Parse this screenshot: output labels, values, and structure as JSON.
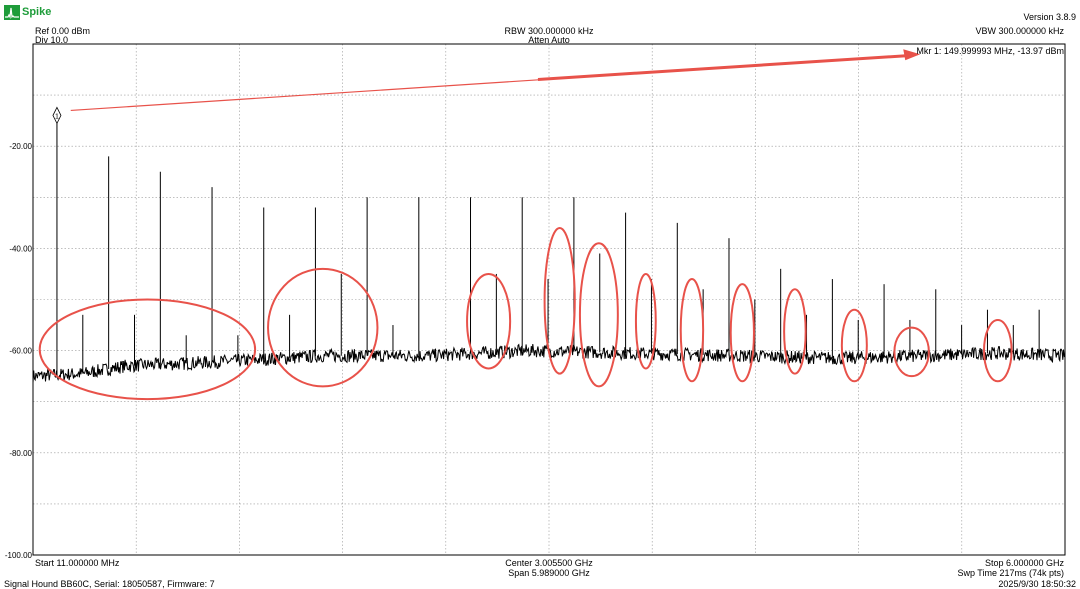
{
  "app": {
    "logo_text": "Spike",
    "version": "Version 3.8.9",
    "brand_color": "#1e9c3a"
  },
  "header": {
    "ref": "Ref 0.00 dBm",
    "div": "Div 10.0",
    "rbw": "RBW 300.000000 kHz",
    "atten": "Atten Auto",
    "vbw": "VBW 300.000000 kHz"
  },
  "marker": {
    "readout": "Mkr 1: 149.999993 MHz, -13.97 dBm",
    "label": "1",
    "freq_mhz": 149.999993,
    "level_dbm": -13.97
  },
  "footer": {
    "start": "Start 11.000000 MHz",
    "center": "Center 3.005500 GHz",
    "span": "Span 5.989000 GHz",
    "stop": "Stop 6.000000 GHz",
    "sweep": "Swp Time 217ms (74k pts)",
    "device": "Signal Hound BB60C, Serial: 18050587, Firmware: 7",
    "timestamp": "2025/9/30 18:50:32"
  },
  "chart_data": {
    "type": "line",
    "x_unit": "MHz",
    "y_unit": "dBm",
    "xlim": [
      11,
      6000
    ],
    "ylim": [
      -100,
      0
    ],
    "y_tick_labels": [
      "-20.00",
      "-40.00",
      "-60.00",
      "-80.00",
      "-100.00"
    ],
    "y_tick_values": [
      -20,
      -40,
      -60,
      -80,
      -100
    ],
    "grid": true,
    "trace_color": "#000000",
    "annotation_color": "#e8524a",
    "noise_floor": [
      [
        11,
        -65
      ],
      [
        300,
        -64.5
      ],
      [
        550,
        -63
      ],
      [
        900,
        -62.5
      ],
      [
        1200,
        -62
      ],
      [
        1700,
        -61
      ],
      [
        2300,
        -61
      ],
      [
        2900,
        -60
      ],
      [
        3500,
        -60.5
      ],
      [
        4100,
        -61
      ],
      [
        4700,
        -61.5
      ],
      [
        5200,
        -61
      ],
      [
        5600,
        -60.5
      ],
      [
        6000,
        -61
      ]
    ],
    "spurs": [
      {
        "freq": 150,
        "level": -13.97
      },
      {
        "freq": 300,
        "level": -53
      },
      {
        "freq": 450,
        "level": -22
      },
      {
        "freq": 600,
        "level": -53
      },
      {
        "freq": 750,
        "level": -25
      },
      {
        "freq": 900,
        "level": -57
      },
      {
        "freq": 1050,
        "level": -28
      },
      {
        "freq": 1200,
        "level": -57
      },
      {
        "freq": 1350,
        "level": -32
      },
      {
        "freq": 1500,
        "level": -53
      },
      {
        "freq": 1650,
        "level": -32
      },
      {
        "freq": 1800,
        "level": -45
      },
      {
        "freq": 1950,
        "level": -30
      },
      {
        "freq": 2100,
        "level": -55
      },
      {
        "freq": 2250,
        "level": -30
      },
      {
        "freq": 2550,
        "level": -30
      },
      {
        "freq": 2700,
        "level": -45
      },
      {
        "freq": 2850,
        "level": -30
      },
      {
        "freq": 3000,
        "level": -46
      },
      {
        "freq": 3150,
        "level": -30
      },
      {
        "freq": 3300,
        "level": -41
      },
      {
        "freq": 3450,
        "level": -33
      },
      {
        "freq": 3600,
        "level": -46
      },
      {
        "freq": 3750,
        "level": -35
      },
      {
        "freq": 3900,
        "level": -48
      },
      {
        "freq": 4050,
        "level": -38
      },
      {
        "freq": 4200,
        "level": -50
      },
      {
        "freq": 4350,
        "level": -44
      },
      {
        "freq": 4500,
        "level": -53
      },
      {
        "freq": 4650,
        "level": -46
      },
      {
        "freq": 4800,
        "level": -54
      },
      {
        "freq": 4950,
        "level": -47
      },
      {
        "freq": 5100,
        "level": -54
      },
      {
        "freq": 5250,
        "level": -48
      },
      {
        "freq": 5400,
        "level": -55
      },
      {
        "freq": 5550,
        "level": -52
      },
      {
        "freq": 5700,
        "level": -55
      },
      {
        "freq": 5850,
        "level": -52
      }
    ],
    "highlight_ellipses": [
      {
        "f_lo": 50,
        "f_hi": 1300,
        "lvl_top": -50,
        "lvl_bot": -69.5
      },
      {
        "f_lo": 1375,
        "f_hi": 2010,
        "lvl_top": -44,
        "lvl_bot": -67
      },
      {
        "f_lo": 2530,
        "f_hi": 2780,
        "lvl_top": -45,
        "lvl_bot": -63.5
      },
      {
        "f_lo": 2980,
        "f_hi": 3155,
        "lvl_top": -36,
        "lvl_bot": -64.5
      },
      {
        "f_lo": 3185,
        "f_hi": 3405,
        "lvl_top": -39,
        "lvl_bot": -67
      },
      {
        "f_lo": 3510,
        "f_hi": 3625,
        "lvl_top": -45,
        "lvl_bot": -63.5
      },
      {
        "f_lo": 3770,
        "f_hi": 3900,
        "lvl_top": -46,
        "lvl_bot": -66
      },
      {
        "f_lo": 4060,
        "f_hi": 4195,
        "lvl_top": -47,
        "lvl_bot": -66
      },
      {
        "f_lo": 4370,
        "f_hi": 4495,
        "lvl_top": -48,
        "lvl_bot": -64.5
      },
      {
        "f_lo": 4705,
        "f_hi": 4850,
        "lvl_top": -52,
        "lvl_bot": -66
      },
      {
        "f_lo": 5010,
        "f_hi": 5210,
        "lvl_top": -55.5,
        "lvl_bot": -65
      },
      {
        "f_lo": 5530,
        "f_hi": 5690,
        "lvl_top": -54,
        "lvl_bot": -66
      }
    ],
    "arrow": {
      "from": [
        230,
        -13
      ],
      "to": [
        5160,
        -2
      ]
    }
  }
}
